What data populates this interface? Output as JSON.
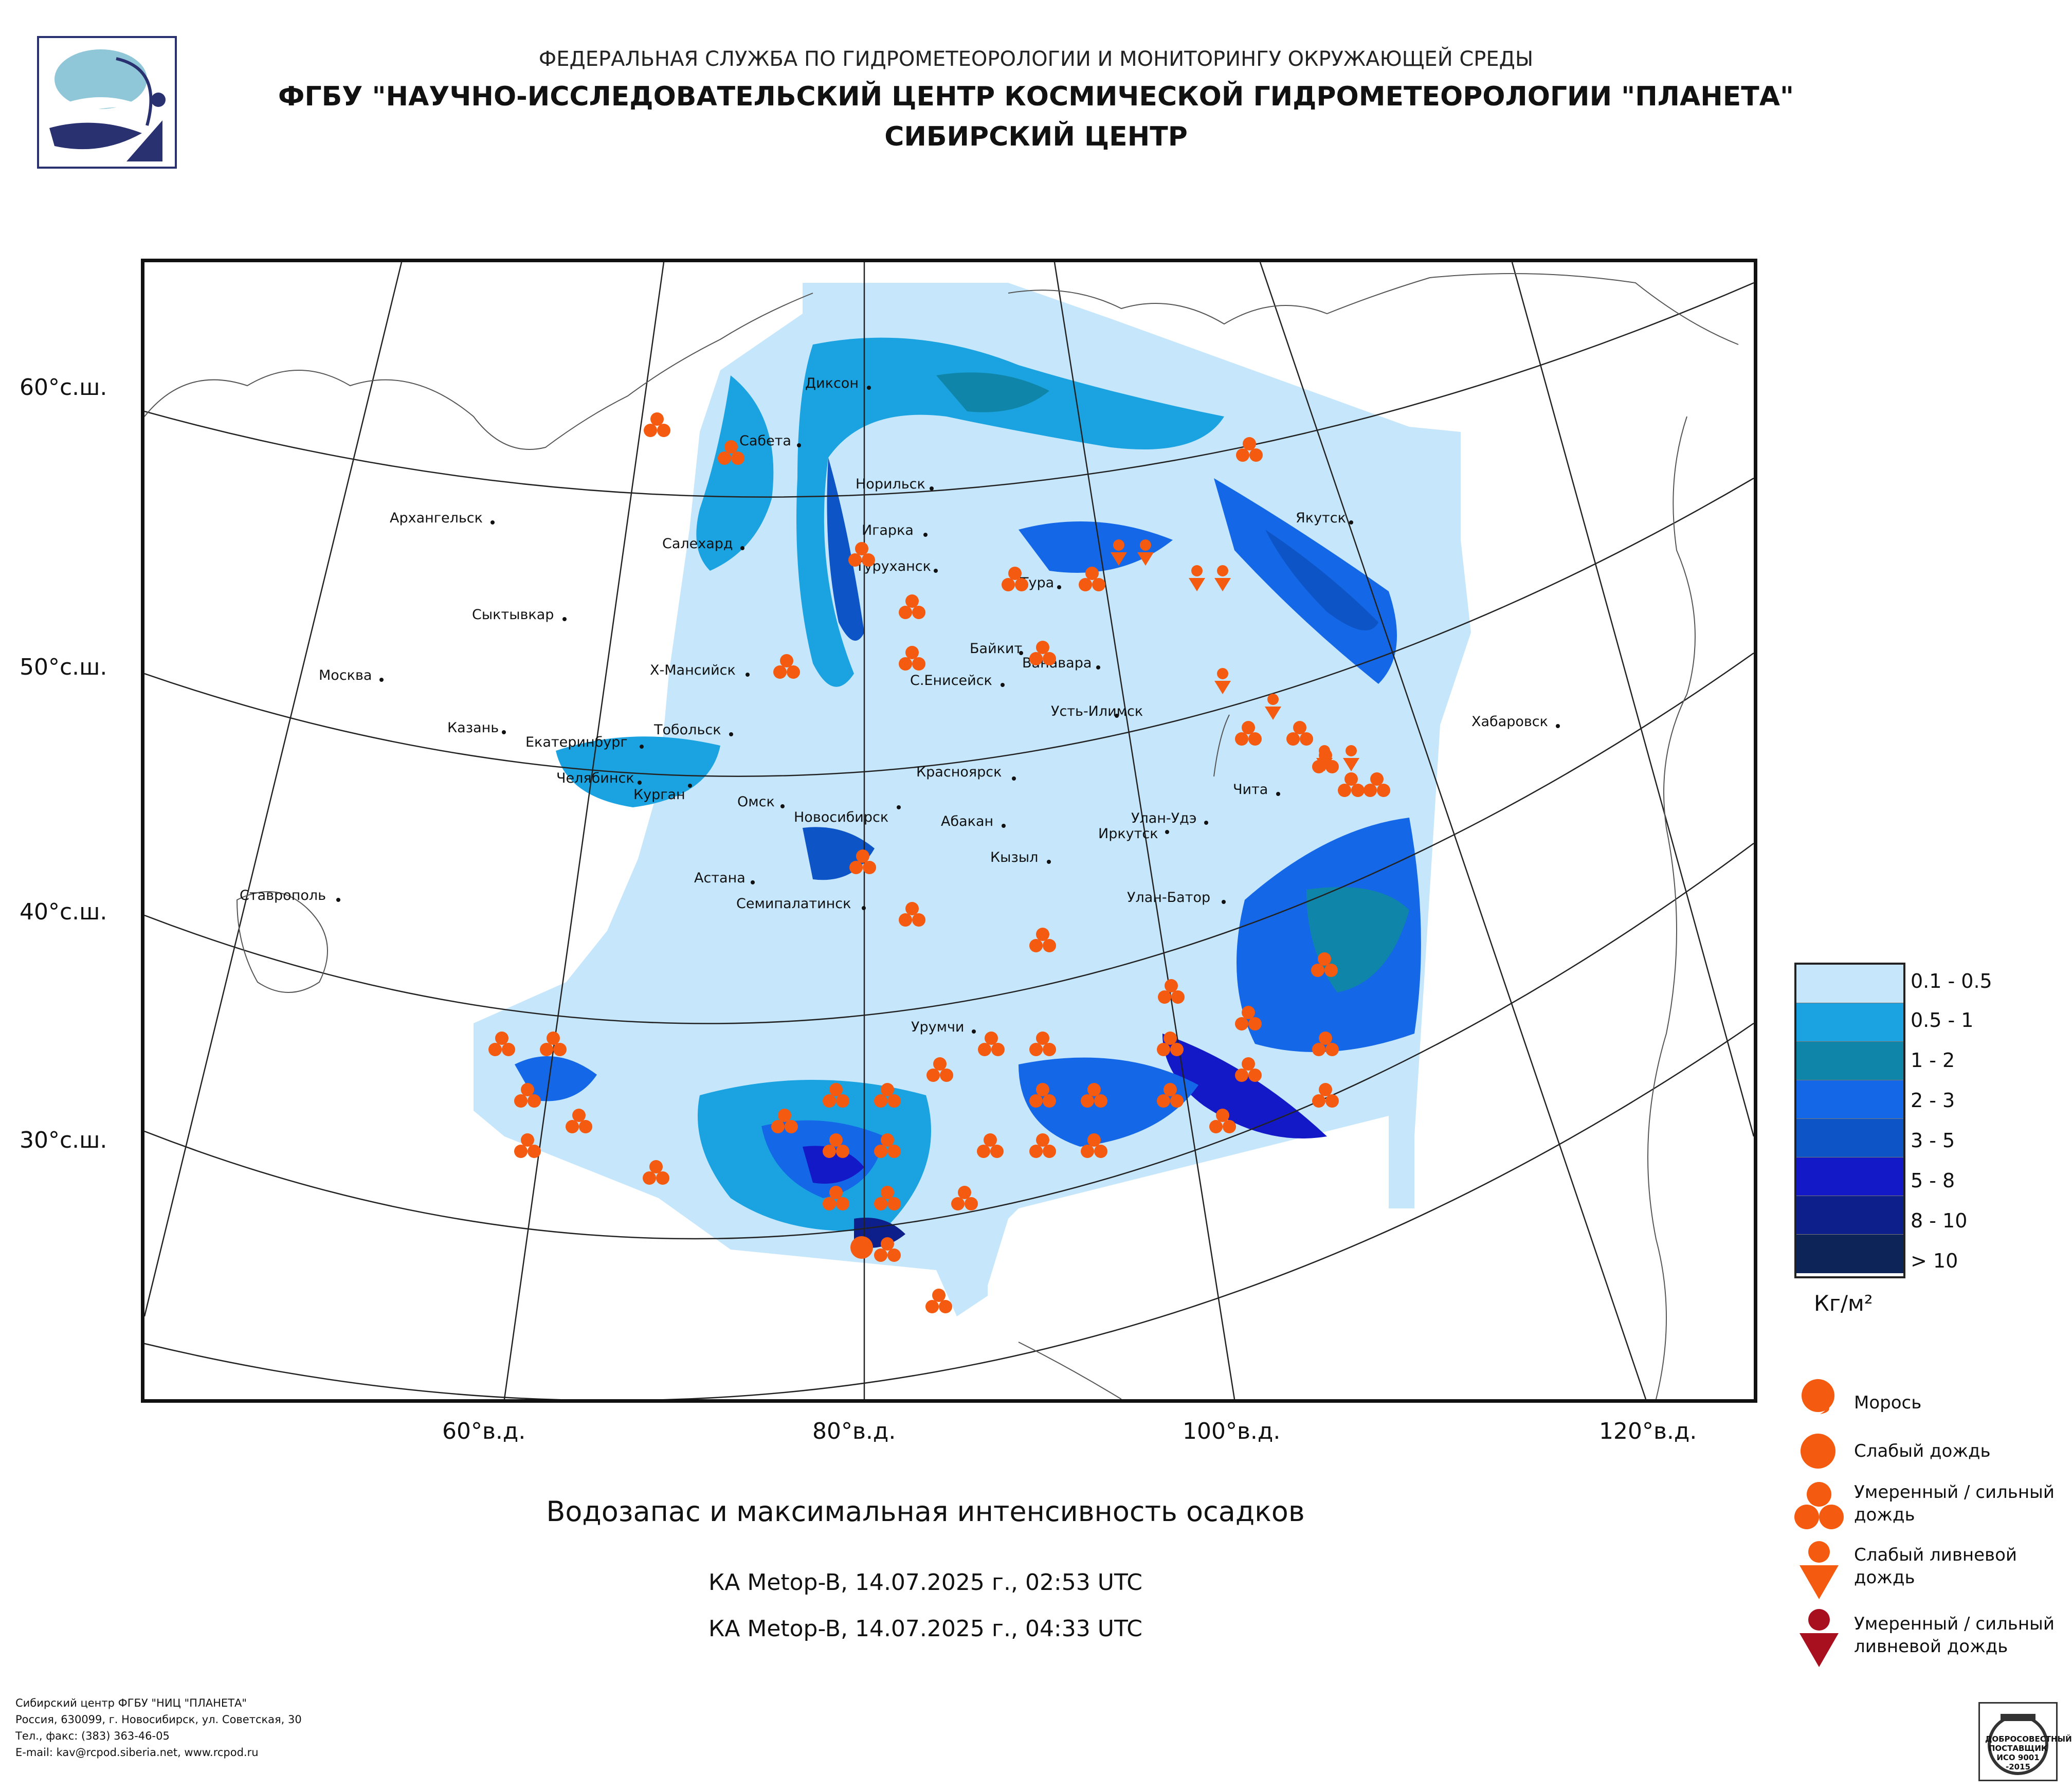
{
  "header": {
    "agency": "ФЕДЕРАЛЬНАЯ СЛУЖБА ПО ГИДРОМЕТЕОРОЛОГИИ И МОНИТОРИНГУ ОКРУЖАЮЩЕЙ СРЕДЫ",
    "center": "ФГБУ \"НАУЧНО-ИССЛЕДОВАТЕЛЬСКИЙ ЦЕНТР КОСМИЧЕСКОЙ ГИДРОМЕТЕОРОЛОГИИ \"ПЛАНЕТА\"",
    "branch": "СИБИРСКИЙ ЦЕНТР",
    "logo_icon": "planeta-logo-icon"
  },
  "map": {
    "lat_labels": [
      "60°с.ш.",
      "50°с.ш.",
      "40°с.ш.",
      "30°с.ш."
    ],
    "lon_labels": [
      "60°в.д.",
      "80°в.д.",
      "100°в.д.",
      "120°в.д."
    ],
    "cities": [
      "Диксон",
      "Сабета",
      "Норильск",
      "Архангельск",
      "Салехард",
      "Игарка",
      "Туруханск",
      "Якутск",
      "Тура",
      "Сыктывкар",
      "Байкит",
      "Ванавара",
      "Х-Мансийск",
      "Москва",
      "С.Енисейск",
      "Усть-Илимск",
      "Казань",
      "Тобольск",
      "Екатеринбург",
      "Хабаровск",
      "Красноярск",
      "Челябинск",
      "Курган",
      "Чита",
      "Омск",
      "Новосибирск",
      "Абакан",
      "Улан-Удэ",
      "Иркутск",
      "Кызыл",
      "Астана",
      "Ставрополь",
      "Семипалатинск",
      "Улан-Батор",
      "Урумчи"
    ]
  },
  "legend": {
    "classes": [
      {
        "label": "0.1 - 0.5",
        "color": "#c5e6fb"
      },
      {
        "label": "0.5 - 1",
        "color": "#1aa3e0"
      },
      {
        "label": "1 - 2",
        "color": "#0f86a9"
      },
      {
        "label": "2 - 3",
        "color": "#1467e6"
      },
      {
        "label": "3 - 5",
        "color": "#0d55c6"
      },
      {
        "label": "5 - 8",
        "color": "#1419c7"
      },
      {
        "label": "8 - 10",
        "color": "#0c1f8a"
      },
      {
        "label": "> 10",
        "color": "#0c2457"
      }
    ],
    "unit": "Кг/м²"
  },
  "precip_legend": [
    {
      "label": "Морось",
      "icon": "drizzle-icon",
      "color": "#f45a10"
    },
    {
      "label": "Слабый дождь",
      "icon": "light-rain-icon",
      "color": "#f45a10"
    },
    {
      "label": "Умеренный / сильный дождь",
      "icon": "moderate-rain-icon",
      "color": "#f45a10"
    },
    {
      "label": "Слабый ливневой дождь",
      "icon": "light-shower-icon",
      "color": "#f45a10"
    },
    {
      "label": "Умеренный / сильный ливневой дождь",
      "icon": "heavy-shower-icon",
      "color": "#a8101f"
    }
  ],
  "titles": {
    "main": "Водозапас и максимальная интенсивность осадков",
    "pass1": "КА Metop-B, 14.07.2025 г., 02:53 UTC",
    "pass2": "КА Metop-B, 14.07.2025 г., 04:33 UTC"
  },
  "footer": {
    "line1": "Сибирский центр ФГБУ \"НИЦ \"ПЛАНЕТА\"",
    "line2": "Россия, 630099, г. Новосибирск, ул. Советская, 30",
    "line3": "Тел., факс: (383) 363-46-05",
    "line4": "E-mail: kav@rcpod.siberia.net, www.rcpod.ru",
    "iso_badge": "ДОБРОСОВЕСТНЫЙ ПОСТАВЩИК ИСО 9001 -2015",
    "iso_icon": "iso-certificate-icon"
  }
}
